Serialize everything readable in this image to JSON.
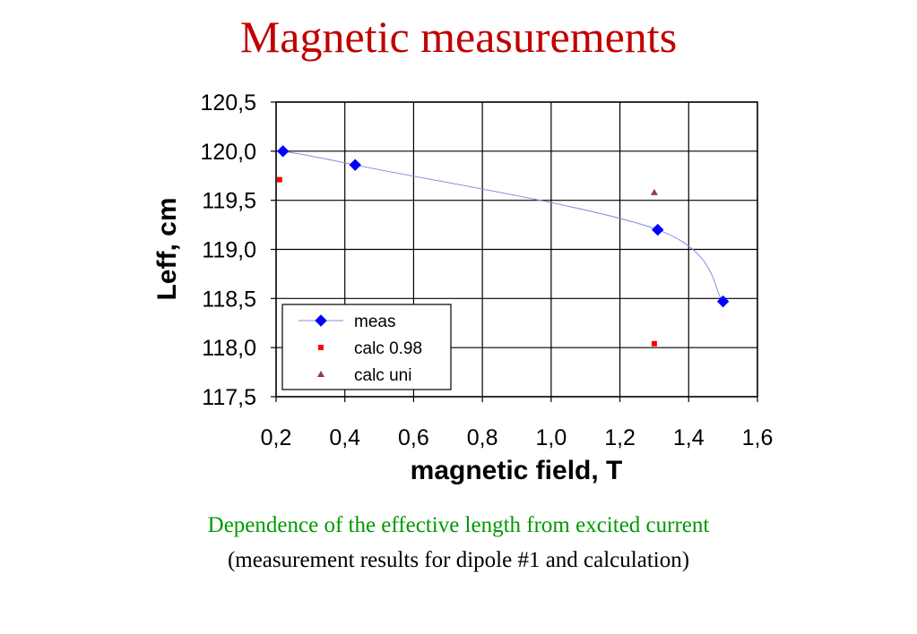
{
  "title": "Magnetic measurements",
  "chart_data": {
    "type": "scatter",
    "xlabel": "magnetic field, T",
    "ylabel": "Leff, cm",
    "xlim": [
      0.2,
      1.6
    ],
    "ylim": [
      117.5,
      120.5
    ],
    "x_ticks": [
      "0,2",
      "0,4",
      "0,6",
      "0,8",
      "1,0",
      "1,2",
      "1,4",
      "1,6"
    ],
    "y_ticks": [
      "120,5",
      "120,0",
      "119,5",
      "119,0",
      "118,5",
      "118,0",
      "117,5"
    ],
    "grid": "vertical and horizontal",
    "legend_position": "bottom-left",
    "series": [
      {
        "name": "meas",
        "marker": "diamond",
        "color": "#0000ff",
        "line": true,
        "x": [
          0.22,
          0.43,
          1.31,
          1.5
        ],
        "y": [
          120.0,
          119.86,
          119.2,
          118.47
        ]
      },
      {
        "name": "calc 0.98",
        "marker": "square",
        "color": "#ff0000",
        "line": false,
        "x": [
          0.21,
          1.3
        ],
        "y": [
          119.71,
          118.04
        ]
      },
      {
        "name": "calc uni",
        "marker": "triangle",
        "color": "#993366",
        "line": false,
        "x": [
          1.3
        ],
        "y": [
          119.58
        ]
      }
    ]
  },
  "caption": {
    "line1": "Dependence of the effective length from excited current",
    "line2": "(measurement results for dipole #1 and calculation)"
  }
}
